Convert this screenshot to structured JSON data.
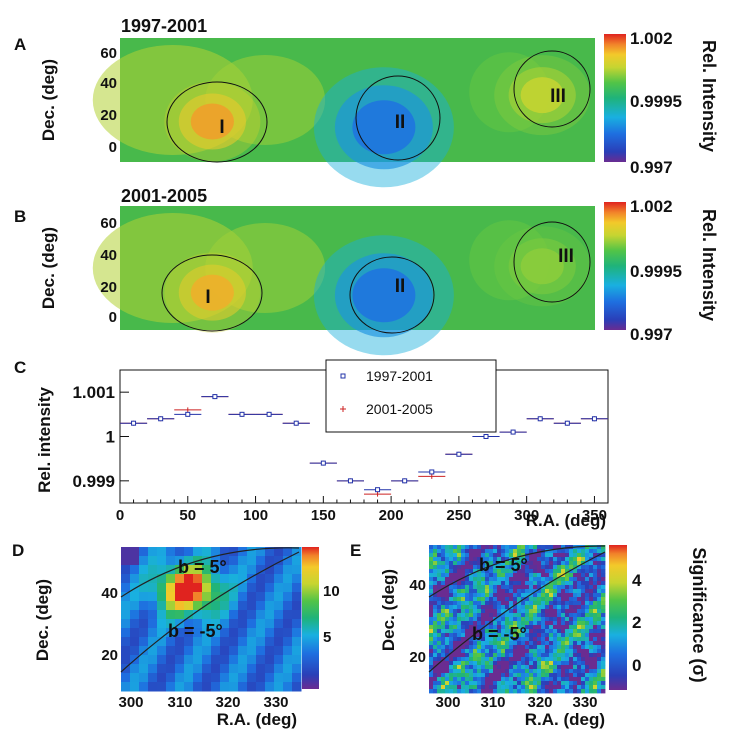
{
  "chart_data": [
    {
      "panel": "A",
      "type": "heatmap",
      "title": "1997-2001",
      "ylabel": "Dec. (deg)",
      "yticks": [
        "60",
        "40",
        "20",
        "0"
      ],
      "ylim": [
        -10,
        70
      ],
      "xlim": [
        0,
        360
      ],
      "colorbar": {
        "label": "Rel. Intensity",
        "min": 0.997,
        "max": 1.002,
        "ticks": [
          "1.002",
          "0.9995",
          "0.997"
        ]
      },
      "regions": [
        {
          "label": "I",
          "ra": 70,
          "dec": 20,
          "intensity": 1.0014
        },
        {
          "label": "II",
          "ra": 200,
          "dec": 15,
          "intensity": 0.9982
        },
        {
          "label": "III",
          "ra": 320,
          "dec": 37,
          "intensity": 1.0007
        }
      ]
    },
    {
      "panel": "B",
      "type": "heatmap",
      "title": "2001-2005",
      "ylabel": "Dec. (deg)",
      "yticks": [
        "60",
        "40",
        "20",
        "0"
      ],
      "ylim": [
        -10,
        70
      ],
      "xlim": [
        0,
        360
      ],
      "colorbar": {
        "label": "Rel. Intensity",
        "min": 0.997,
        "max": 1.002,
        "ticks": [
          "1.002",
          "0.9995",
          "0.997"
        ]
      },
      "regions": [
        {
          "label": "I",
          "ra": 70,
          "dec": 18,
          "intensity": 1.0013
        },
        {
          "label": "II",
          "ra": 200,
          "dec": 15,
          "intensity": 0.9982
        },
        {
          "label": "III",
          "ra": 320,
          "dec": 35,
          "intensity": 1.0004
        }
      ]
    },
    {
      "panel": "C",
      "type": "scatter",
      "xlabel": "R.A. (deg)",
      "ylabel": "Rel. intensity",
      "xlim": [
        0,
        360
      ],
      "ylim": [
        0.9985,
        1.0015
      ],
      "xticks": [
        "0",
        "50",
        "100",
        "150",
        "200",
        "250",
        "300",
        "350"
      ],
      "yticks": [
        "1.001",
        "1",
        "0.999"
      ],
      "x": [
        10,
        30,
        50,
        70,
        90,
        110,
        130,
        150,
        170,
        190,
        210,
        230,
        250,
        270,
        290,
        310,
        330,
        350
      ],
      "series": [
        {
          "name": "1997-2001",
          "values": [
            1.0003,
            1.0004,
            1.0005,
            1.0009,
            1.0005,
            1.0005,
            1.0003,
            0.9994,
            0.999,
            0.9988,
            0.999,
            0.9992,
            0.9996,
            1.0,
            1.0001,
            1.0004,
            1.0003,
            1.0004
          ]
        },
        {
          "name": "2001-2005",
          "values": [
            1.0003,
            1.0004,
            1.0006,
            1.0009,
            1.0005,
            1.0005,
            1.0003,
            0.9994,
            0.999,
            0.9987,
            0.999,
            0.9991,
            0.9996,
            1.0,
            1.0001,
            1.0004,
            1.0003,
            1.0004
          ]
        }
      ]
    },
    {
      "panel": "D",
      "type": "heatmap",
      "xlabel": "R.A. (deg)",
      "ylabel": "Dec. (deg)",
      "xlim": [
        295,
        335
      ],
      "ylim": [
        10,
        50
      ],
      "xticks": [
        "300",
        "310",
        "320",
        "330"
      ],
      "yticks": [
        "40",
        "20"
      ],
      "colorbar": {
        "min": 0,
        "max": 14,
        "ticks": [
          "10",
          "5"
        ]
      },
      "annotations": [
        "b = 5°",
        "b = -5°"
      ],
      "hotspot": {
        "ra": 310,
        "dec": 38,
        "value": 13
      }
    },
    {
      "panel": "E",
      "type": "heatmap",
      "xlabel": "R.A. (deg)",
      "ylabel": "Dec. (deg)",
      "xlim": [
        295,
        335
      ],
      "ylim": [
        10,
        50
      ],
      "xticks": [
        "300",
        "310",
        "320",
        "330"
      ],
      "yticks": [
        "40",
        "20"
      ],
      "colorbar": {
        "label": "Significance (σ)",
        "min": -1,
        "max": 5.5,
        "ticks": [
          "4",
          "2",
          "0"
        ]
      },
      "annotations": [
        "b = 5°",
        "b = -5°"
      ]
    }
  ]
}
